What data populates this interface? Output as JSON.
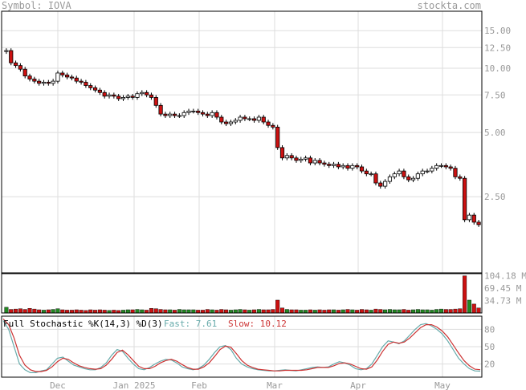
{
  "header": {
    "symbol_prefix": "Symbol:",
    "symbol": "IOVA",
    "watermark": "stockta.com"
  },
  "colors": {
    "up_candle": "#ffffff",
    "down_candle": "#cc1111",
    "volume_up": "#228822",
    "volume_down": "#cc1111",
    "fast_line": "#66aaaa",
    "slow_line": "#cc3333",
    "grid": "#dddddd",
    "axis_text": "#999999"
  },
  "chart_data": [
    {
      "type": "candlestick",
      "panel": "price",
      "scale": "log",
      "ylim": [
        1.1,
        18.5
      ],
      "y_ticks": [
        15.0,
        12.5,
        10.0,
        7.5,
        5.0,
        2.5
      ],
      "y_tick_labels": [
        "15.00",
        "12.50",
        "10.00",
        "7.50",
        "5.00",
        "2.50"
      ],
      "x_labels": [
        "Dec",
        "Jan 2025",
        "Feb",
        "Mar",
        "Apr",
        "May"
      ],
      "closes": [
        12.1,
        10.6,
        10.3,
        9.9,
        9.2,
        8.9,
        8.7,
        8.5,
        8.6,
        8.5,
        8.7,
        9.5,
        9.3,
        9.1,
        9.0,
        8.7,
        8.6,
        8.3,
        8.1,
        7.9,
        7.7,
        7.4,
        7.5,
        7.4,
        7.2,
        7.3,
        7.4,
        7.3,
        7.6,
        7.7,
        7.5,
        7.3,
        6.7,
        6.1,
        6.0,
        6.1,
        6.0,
        6.0,
        6.2,
        6.3,
        6.3,
        6.2,
        6.1,
        6.0,
        6.2,
        5.9,
        5.6,
        5.5,
        5.6,
        5.7,
        5.9,
        5.8,
        5.8,
        5.7,
        5.9,
        5.6,
        5.4,
        5.3,
        4.25,
        3.8,
        3.9,
        3.8,
        3.7,
        3.75,
        3.8,
        3.6,
        3.7,
        3.6,
        3.55,
        3.5,
        3.55,
        3.45,
        3.5,
        3.4,
        3.5,
        3.45,
        3.3,
        3.2,
        3.2,
        2.9,
        2.8,
        2.95,
        3.1,
        3.2,
        3.3,
        3.1,
        3.0,
        3.05,
        3.2,
        3.3,
        3.3,
        3.4,
        3.5,
        3.5,
        3.45,
        3.4,
        3.1,
        3.05,
        1.95,
        2.05,
        1.9,
        1.85
      ]
    },
    {
      "type": "bar",
      "panel": "volume",
      "y_tick_labels": [
        "104.18 M",
        "69.45 M",
        "34.73 M"
      ],
      "values_millions": [
        16,
        10,
        11,
        12,
        10,
        13,
        11,
        9,
        8,
        9,
        10,
        12,
        9,
        8,
        8,
        9,
        8,
        7,
        9,
        8,
        9,
        8,
        7,
        8,
        7,
        8,
        9,
        9,
        10,
        9,
        8,
        13,
        12,
        10,
        9,
        9,
        8,
        10,
        9,
        9,
        9,
        8,
        8,
        10,
        9,
        8,
        10,
        9,
        8,
        9,
        10,
        9,
        8,
        9,
        10,
        9,
        9,
        10,
        36,
        14,
        10,
        9,
        9,
        8,
        8,
        9,
        8,
        9,
        8,
        9,
        9,
        8,
        9,
        10,
        9,
        8,
        10,
        9,
        8,
        11,
        10,
        9,
        10,
        9,
        9,
        10,
        8,
        9,
        10,
        9,
        9,
        8,
        10,
        11,
        10,
        10,
        11,
        12,
        104,
        36,
        25,
        14
      ]
    },
    {
      "type": "line",
      "panel": "stochastic",
      "title": "Full Stochastic %K(14,3) %D(3)",
      "fast_label": "Fast:",
      "fast_value": "7.61",
      "slow_label": "Slow:",
      "slow_value": "10.12",
      "ylim": [
        0,
        100
      ],
      "y_tick_labels": [
        "80",
        "50",
        "20"
      ],
      "y_ticks": [
        80,
        50,
        20
      ],
      "series": [
        {
          "name": "Fast",
          "values": [
            95,
            80,
            50,
            20,
            10,
            5,
            5,
            8,
            10,
            20,
            30,
            32,
            25,
            18,
            15,
            12,
            10,
            10,
            14,
            22,
            35,
            45,
            42,
            30,
            20,
            12,
            10,
            14,
            20,
            25,
            28,
            27,
            22,
            15,
            12,
            10,
            12,
            18,
            28,
            40,
            50,
            52,
            45,
            30,
            20,
            15,
            12,
            10,
            9,
            8,
            8,
            9,
            10,
            9,
            8,
            10,
            12,
            14,
            15,
            14,
            15,
            20,
            24,
            22,
            18,
            12,
            10,
            12,
            20,
            35,
            50,
            60,
            58,
            55,
            60,
            70,
            80,
            88,
            90,
            86,
            80,
            72,
            60,
            45,
            30,
            20,
            12,
            8,
            7.61
          ]
        },
        {
          "name": "Slow",
          "values": [
            98,
            88,
            65,
            35,
            18,
            10,
            7,
            7,
            9,
            15,
            24,
            30,
            28,
            22,
            17,
            14,
            12,
            11,
            12,
            18,
            28,
            40,
            44,
            36,
            26,
            16,
            12,
            12,
            16,
            22,
            26,
            28,
            25,
            19,
            14,
            11,
            11,
            15,
            22,
            33,
            45,
            51,
            49,
            38,
            26,
            18,
            14,
            11,
            10,
            9,
            8,
            8,
            9,
            9,
            9,
            9,
            10,
            12,
            14,
            14,
            14,
            17,
            21,
            22,
            20,
            16,
            12,
            11,
            15,
            27,
            42,
            54,
            58,
            56,
            58,
            65,
            74,
            83,
            88,
            88,
            84,
            77,
            67,
            53,
            39,
            26,
            17,
            11,
            10.12
          ]
        }
      ]
    }
  ]
}
